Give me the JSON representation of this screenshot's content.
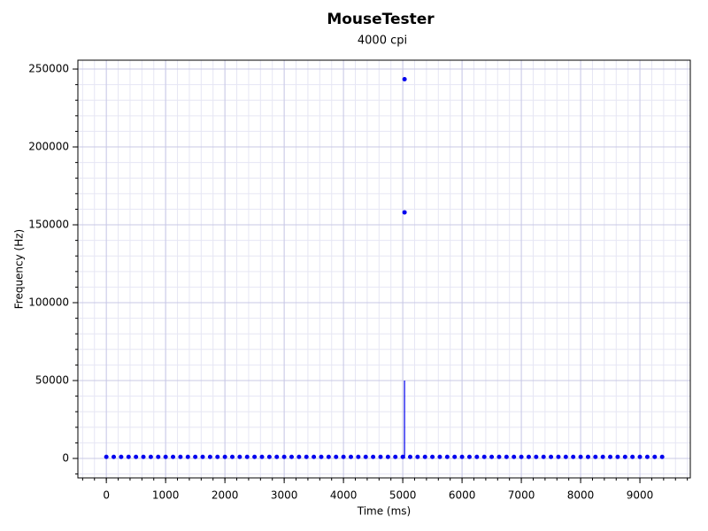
{
  "chart_data": {
    "type": "scatter",
    "title": "MouseTester",
    "subtitle": "4000 cpi",
    "x_label": "Time (ms)",
    "y_label": "Frequency (Hz)",
    "xlim": [
      -480,
      9850
    ],
    "ylim": [
      -12500,
      255700
    ],
    "xticks": [
      0,
      1000,
      2000,
      3000,
      4000,
      5000,
      6000,
      7000,
      8000,
      9000
    ],
    "yticks": [
      0,
      50000,
      100000,
      150000,
      200000,
      250000
    ],
    "x_minor_step": 200,
    "y_minor_step": 10000,
    "grid": true,
    "series": [
      {
        "type": "scatter",
        "color": "#0000ee",
        "x": [
          0,
          125,
          250,
          375,
          500,
          625,
          750,
          875,
          1000,
          1125,
          1250,
          1375,
          1500,
          1625,
          1750,
          1875,
          2000,
          2125,
          2250,
          2375,
          2500,
          2625,
          2750,
          2875,
          3000,
          3125,
          3250,
          3375,
          3500,
          3625,
          3750,
          3875,
          4000,
          4125,
          4250,
          4375,
          4500,
          4625,
          4750,
          4875,
          5000,
          5030,
          5030,
          5125,
          5250,
          5375,
          5500,
          5625,
          5750,
          5875,
          6000,
          6125,
          6250,
          6375,
          6500,
          6625,
          6750,
          6875,
          7000,
          7125,
          7250,
          7375,
          7500,
          7625,
          7750,
          7875,
          8000,
          8125,
          8250,
          8375,
          8500,
          8625,
          8750,
          8875,
          9000,
          9125,
          9250,
          9375
        ],
        "y": [
          1000,
          1000,
          1000,
          1000,
          1000,
          1000,
          1000,
          1000,
          1000,
          1000,
          1000,
          1000,
          1000,
          1000,
          1000,
          1000,
          1000,
          1000,
          1000,
          1000,
          1000,
          1000,
          1000,
          1000,
          1000,
          1000,
          1000,
          1000,
          1000,
          1000,
          1000,
          1000,
          1000,
          1000,
          1000,
          1000,
          1000,
          1000,
          1000,
          1000,
          1000,
          243500,
          158000,
          1000,
          1000,
          1000,
          1000,
          1000,
          1000,
          1000,
          1000,
          1000,
          1000,
          1000,
          1000,
          1000,
          1000,
          1000,
          1000,
          1000,
          1000,
          1000,
          1000,
          1000,
          1000,
          1000,
          1000,
          1000,
          1000,
          1000,
          1000,
          1000,
          1000,
          1000,
          1000,
          1000,
          1000,
          1000
        ]
      },
      {
        "type": "line",
        "color": "#0000ee",
        "x": [
          5030,
          5030
        ],
        "y": [
          0,
          50000
        ]
      }
    ]
  }
}
